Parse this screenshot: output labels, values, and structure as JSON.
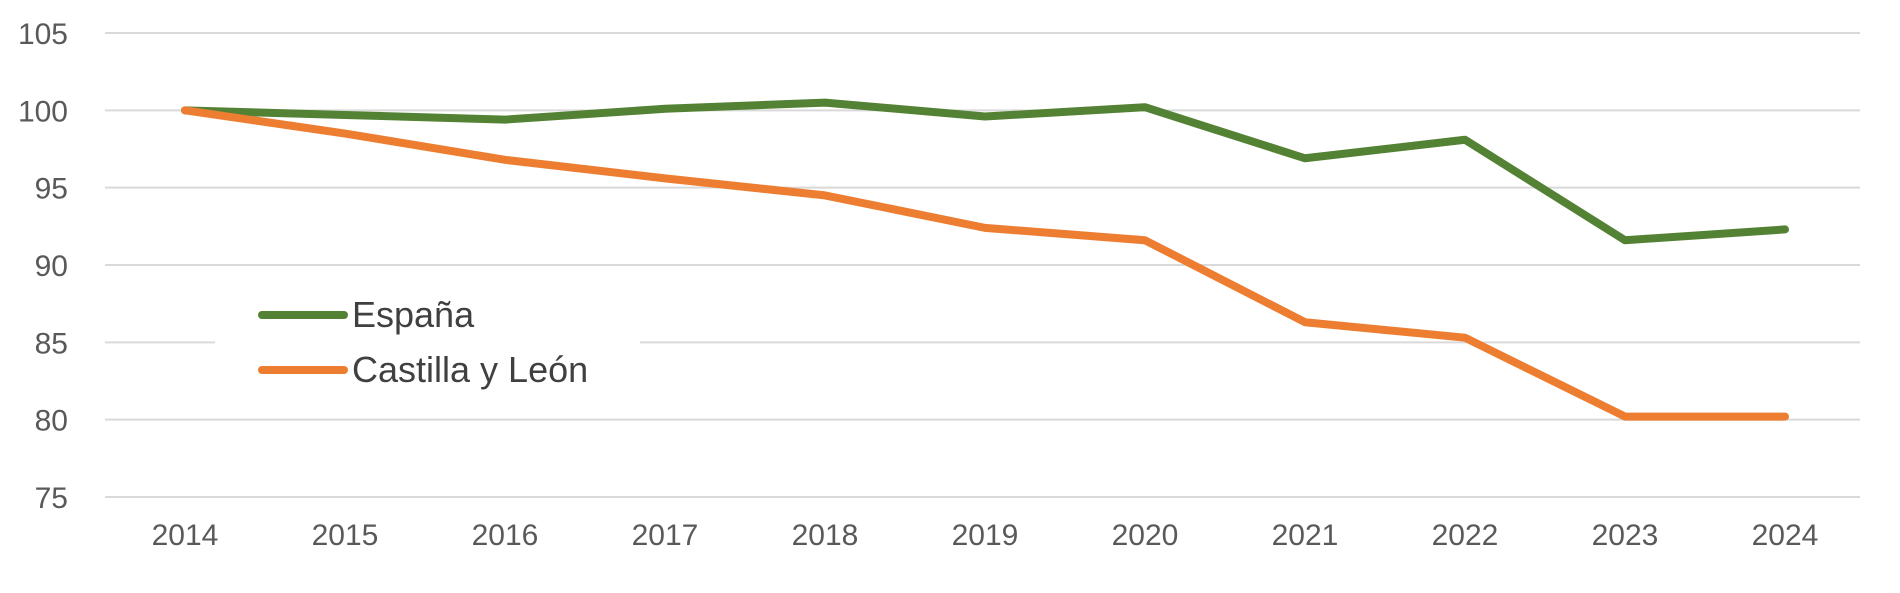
{
  "chart_data": {
    "type": "line",
    "title": "",
    "xlabel": "",
    "ylabel": "",
    "categories": [
      "2014",
      "2015",
      "2016",
      "2017",
      "2018",
      "2019",
      "2020",
      "2021",
      "2022",
      "2023",
      "2024"
    ],
    "y_ticks": [
      "75",
      "80",
      "85",
      "90",
      "95",
      "100",
      "105"
    ],
    "ylim": [
      75,
      105
    ],
    "grid": true,
    "legend_position": "left",
    "series": [
      {
        "name": "España",
        "color": "#548235",
        "values": [
          100,
          99.7,
          99.4,
          100.1,
          100.5,
          99.6,
          100.2,
          96.9,
          98.1,
          91.6,
          92.3
        ]
      },
      {
        "name": "Castilla y León",
        "color": "#ED7D31",
        "values": [
          100,
          98.5,
          96.8,
          95.6,
          94.5,
          92.4,
          91.6,
          86.3,
          85.3,
          80.2,
          80.2
        ]
      }
    ]
  }
}
